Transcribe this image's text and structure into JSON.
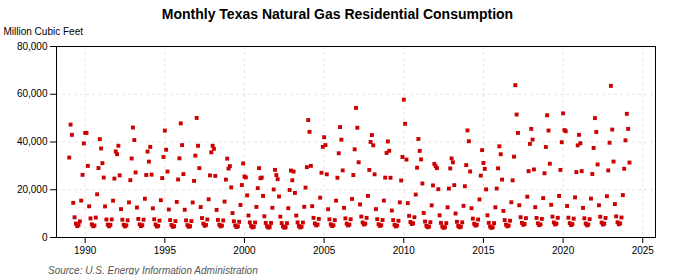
{
  "chart_data": {
    "type": "scatter",
    "title": "Monthly Texas Natural Gas Residential Consumption",
    "ylabel": "Million Cubic Feet",
    "source": "Source: U.S. Energy Information Administration",
    "color": "#cc0000",
    "marker": "square",
    "grid": true,
    "xlim": [
      1988.2,
      2025.8
    ],
    "xticks": [
      1990,
      1995,
      2000,
      2005,
      2010,
      2015,
      2020,
      2025
    ],
    "ylim": [
      0,
      80000
    ],
    "yticks": [
      0,
      {
        "value": 20000,
        "label": "20,000"
      },
      {
        "value": 40000,
        "label": "40,000"
      },
      {
        "value": 60000,
        "label": "60,000"
      },
      {
        "value": 80000,
        "label": "80,000"
      }
    ],
    "x": [
      1989,
      1989.0833333333333,
      1989.1666666666667,
      1989.25,
      1989.3333333333333,
      1989.4166666666667,
      1989.5,
      1989.5833333333333,
      1989.6666666666667,
      1989.75,
      1989.8333333333333,
      1989.9166666666667,
      1990,
      1990.0833333333333,
      1990.1666666666667,
      1990.25,
      1990.3333333333333,
      1990.4166666666667,
      1990.5,
      1990.5833333333333,
      1990.6666666666667,
      1990.75,
      1990.8333333333333,
      1990.9166666666667,
      1991,
      1991.0833333333333,
      1991.1666666666667,
      1991.25,
      1991.3333333333333,
      1991.4166666666667,
      1991.5,
      1991.5833333333333,
      1991.6666666666667,
      1991.75,
      1991.8333333333333,
      1991.9166666666667,
      1992,
      1992.0833333333333,
      1992.1666666666667,
      1992.25,
      1992.3333333333333,
      1992.4166666666667,
      1992.5,
      1992.5833333333333,
      1992.6666666666667,
      1992.75,
      1992.8333333333333,
      1992.9166666666667,
      1993,
      1993.0833333333333,
      1993.1666666666667,
      1993.25,
      1993.3333333333333,
      1993.4166666666667,
      1993.5,
      1993.5833333333333,
      1993.6666666666667,
      1993.75,
      1993.8333333333333,
      1993.9166666666667,
      1994,
      1994.0833333333333,
      1994.1666666666667,
      1994.25,
      1994.3333333333333,
      1994.4166666666667,
      1994.5,
      1994.5833333333333,
      1994.6666666666667,
      1994.75,
      1994.8333333333333,
      1994.9166666666667,
      1995,
      1995.0833333333333,
      1995.1666666666667,
      1995.25,
      1995.3333333333333,
      1995.4166666666667,
      1995.5,
      1995.5833333333333,
      1995.6666666666667,
      1995.75,
      1995.8333333333333,
      1995.9166666666667,
      1996,
      1996.0833333333333,
      1996.1666666666667,
      1996.25,
      1996.3333333333333,
      1996.4166666666667,
      1996.5,
      1996.5833333333333,
      1996.6666666666667,
      1996.75,
      1996.8333333333333,
      1996.9166666666667,
      1997,
      1997.0833333333333,
      1997.1666666666667,
      1997.25,
      1997.3333333333333,
      1997.4166666666667,
      1997.5,
      1997.5833333333333,
      1997.6666666666667,
      1997.75,
      1997.8333333333333,
      1997.9166666666667,
      1998,
      1998.0833333333333,
      1998.1666666666667,
      1998.25,
      1998.3333333333333,
      1998.4166666666667,
      1998.5,
      1998.5833333333333,
      1998.6666666666667,
      1998.75,
      1998.8333333333333,
      1998.9166666666667,
      1999,
      1999.0833333333333,
      1999.1666666666667,
      1999.25,
      1999.3333333333333,
      1999.4166666666667,
      1999.5,
      1999.5833333333333,
      1999.6666666666667,
      1999.75,
      1999.8333333333333,
      1999.9166666666667,
      2000,
      2000.0833333333333,
      2000.1666666666667,
      2000.25,
      2000.3333333333333,
      2000.4166666666667,
      2000.5,
      2000.5833333333333,
      2000.6666666666667,
      2000.75,
      2000.8333333333333,
      2000.9166666666667,
      2001,
      2001.0833333333333,
      2001.1666666666667,
      2001.25,
      2001.3333333333333,
      2001.4166666666667,
      2001.5,
      2001.5833333333333,
      2001.6666666666667,
      2001.75,
      2001.8333333333333,
      2001.9166666666667,
      2002,
      2002.0833333333333,
      2002.1666666666667,
      2002.25,
      2002.3333333333333,
      2002.4166666666667,
      2002.5,
      2002.5833333333333,
      2002.6666666666667,
      2002.75,
      2002.8333333333333,
      2002.9166666666667,
      2003,
      2003.0833333333333,
      2003.1666666666667,
      2003.25,
      2003.3333333333333,
      2003.4166666666667,
      2003.5,
      2003.5833333333333,
      2003.6666666666667,
      2003.75,
      2003.8333333333333,
      2003.9166666666667,
      2004,
      2004.0833333333333,
      2004.1666666666667,
      2004.25,
      2004.3333333333333,
      2004.4166666666667,
      2004.5,
      2004.5833333333333,
      2004.6666666666667,
      2004.75,
      2004.8333333333333,
      2004.9166666666667,
      2005,
      2005.0833333333333,
      2005.1666666666667,
      2005.25,
      2005.3333333333333,
      2005.4166666666667,
      2005.5,
      2005.5833333333333,
      2005.6666666666667,
      2005.75,
      2005.8333333333333,
      2005.9166666666667,
      2006,
      2006.0833333333333,
      2006.1666666666667,
      2006.25,
      2006.3333333333333,
      2006.4166666666667,
      2006.5,
      2006.5833333333333,
      2006.6666666666667,
      2006.75,
      2006.8333333333333,
      2006.9166666666667,
      2007,
      2007.0833333333333,
      2007.1666666666667,
      2007.25,
      2007.3333333333333,
      2007.4166666666667,
      2007.5,
      2007.5833333333333,
      2007.6666666666667,
      2007.75,
      2007.8333333333333,
      2007.9166666666667,
      2008,
      2008.0833333333333,
      2008.1666666666667,
      2008.25,
      2008.3333333333333,
      2008.4166666666667,
      2008.5,
      2008.5833333333333,
      2008.6666666666667,
      2008.75,
      2008.8333333333333,
      2008.9166666666667,
      2009,
      2009.0833333333333,
      2009.1666666666667,
      2009.25,
      2009.3333333333333,
      2009.4166666666667,
      2009.5,
      2009.5833333333333,
      2009.6666666666667,
      2009.75,
      2009.8333333333333,
      2009.9166666666667,
      2010,
      2010.0833333333333,
      2010.1666666666667,
      2010.25,
      2010.3333333333333,
      2010.4166666666667,
      2010.5,
      2010.5833333333333,
      2010.6666666666667,
      2010.75,
      2010.8333333333333,
      2010.9166666666667,
      2011,
      2011.0833333333333,
      2011.1666666666667,
      2011.25,
      2011.3333333333333,
      2011.4166666666667,
      2011.5,
      2011.5833333333333,
      2011.6666666666667,
      2011.75,
      2011.8333333333333,
      2011.9166666666667,
      2012,
      2012.0833333333333,
      2012.1666666666667,
      2012.25,
      2012.3333333333333,
      2012.4166666666667,
      2012.5,
      2012.5833333333333,
      2012.6666666666667,
      2012.75,
      2012.8333333333333,
      2012.9166666666667,
      2013,
      2013.0833333333333,
      2013.1666666666667,
      2013.25,
      2013.3333333333333,
      2013.4166666666667,
      2013.5,
      2013.5833333333333,
      2013.6666666666667,
      2013.75,
      2013.8333333333333,
      2013.9166666666667,
      2014,
      2014.0833333333333,
      2014.1666666666667,
      2014.25,
      2014.3333333333333,
      2014.4166666666667,
      2014.5,
      2014.5833333333333,
      2014.6666666666667,
      2014.75,
      2014.8333333333333,
      2014.9166666666667,
      2015,
      2015.0833333333333,
      2015.1666666666667,
      2015.25,
      2015.3333333333333,
      2015.4166666666667,
      2015.5,
      2015.5833333333333,
      2015.6666666666667,
      2015.75,
      2015.8333333333333,
      2015.9166666666667,
      2016,
      2016.0833333333333,
      2016.1666666666667,
      2016.25,
      2016.3333333333333,
      2016.4166666666667,
      2016.5,
      2016.5833333333333,
      2016.6666666666667,
      2016.75,
      2016.8333333333333,
      2016.9166666666667,
      2017,
      2017.0833333333333,
      2017.1666666666667,
      2017.25,
      2017.3333333333333,
      2017.4166666666667,
      2017.5,
      2017.5833333333333,
      2017.6666666666667,
      2017.75,
      2017.8333333333333,
      2017.9166666666667,
      2018,
      2018.0833333333333,
      2018.1666666666667,
      2018.25,
      2018.3333333333333,
      2018.4166666666667,
      2018.5,
      2018.5833333333333,
      2018.6666666666667,
      2018.75,
      2018.8333333333333,
      2018.9166666666667,
      2019,
      2019.0833333333333,
      2019.1666666666667,
      2019.25,
      2019.3333333333333,
      2019.4166666666667,
      2019.5,
      2019.5833333333333,
      2019.6666666666667,
      2019.75,
      2019.8333333333333,
      2019.9166666666667,
      2020,
      2020.0833333333333,
      2020.1666666666667,
      2020.25,
      2020.3333333333333,
      2020.4166666666667,
      2020.5,
      2020.5833333333333,
      2020.6666666666667,
      2020.75,
      2020.8333333333333,
      2020.9166666666667,
      2021,
      2021.0833333333333,
      2021.1666666666667,
      2021.25,
      2021.3333333333333,
      2021.4166666666667,
      2021.5,
      2021.5833333333333,
      2021.6666666666667,
      2021.75,
      2021.8333333333333,
      2021.9166666666667,
      2022,
      2022.0833333333333,
      2022.1666666666667,
      2022.25,
      2022.3333333333333,
      2022.4166666666667,
      2022.5,
      2022.5833333333333,
      2022.6666666666667,
      2022.75,
      2022.8333333333333,
      2022.9166666666667,
      2023,
      2023.0833333333333,
      2023.1666666666667,
      2023.25,
      2023.3333333333333,
      2023.4166666666667,
      2023.5,
      2023.5833333333333,
      2023.6666666666667,
      2023.75,
      2023.8333333333333,
      2023.9166666666667,
      2024,
      2024.0833333333333,
      2024.1666666666667
    ],
    "values": [
      33476,
      47291,
      42983,
      14505,
      8455,
      5827,
      4764,
      5218,
      6758,
      15459,
      26237,
      39407,
      43802,
      43827,
      29982,
      13069,
      8012,
      5505,
      4728,
      5042,
      8337,
      18098,
      29099,
      41210,
      37286,
      31148,
      25107,
      13022,
      7539,
      5401,
      4680,
      5279,
      7543,
      15432,
      24673,
      36041,
      34895,
      38428,
      26016,
      11889,
      7476,
      5330,
      4634,
      5109,
      7221,
      14698,
      24003,
      33088,
      46059,
      40817,
      27261,
      12539,
      7774,
      5519,
      4745,
      5176,
      7467,
      16236,
      26177,
      35999,
      31786,
      37946,
      26337,
      12218,
      7622,
      5458,
      4598,
      4876,
      7088,
      15613,
      24894,
      33726,
      44776,
      36753,
      27618,
      11726,
      7290,
      5239,
      4454,
      4754,
      6873,
      14907,
      24303,
      33164,
      47809,
      38700,
      26547,
      11617,
      7176,
      5184,
      4465,
      4756,
      6856,
      14672,
      23700,
      34290,
      50076,
      38432,
      29059,
      12756,
      8136,
      5813,
      4878,
      5246,
      7542,
      16012,
      26007,
      35682,
      38428,
      37165,
      25803,
      11563,
      7362,
      5371,
      4654,
      4990,
      7138,
      15040,
      24262,
      33041,
      28887,
      29900,
      20985,
      10234,
      6787,
      5040,
      4397,
      4694,
      6569,
      13632,
      21981,
      31025,
      25553,
      25164,
      17649,
      9213,
      6331,
      4810,
      4225,
      4510,
      6277,
      12801,
      20685,
      29060,
      24813,
      25102,
      17423,
      8879,
      6098,
      4687,
      4121,
      4396,
      6087,
      12447,
      20124,
      28326,
      26124,
      24428,
      17183,
      8741,
      6047,
      4617,
      4082,
      4316,
      6002,
      12270,
      19892,
      28041,
      23977,
      27617,
      18665,
      9185,
      6330,
      4818,
      4228,
      4509,
      6273,
      12856,
      20901,
      29454,
      49190,
      44256,
      30004,
      13118,
      8230,
      5880,
      5057,
      5413,
      7790,
      16673,
      27107,
      37952,
      42003,
      38714,
      26462,
      11832,
      7614,
      5541,
      4806,
      5142,
      7306,
      15434,
      25032,
      35290,
      46258,
      40977,
      28107,
      12415,
      8010,
      5815,
      5044,
      5399,
      7639,
      16146,
      26172,
      36929,
      54290,
      45978,
      31502,
      13852,
      8764,
      6295,
      5438,
      5817,
      8224,
      17422,
      28316,
      40007,
      42908,
      38611,
      26462,
      11895,
      7675,
      5581,
      4847,
      5182,
      7327,
      15460,
      25080,
      35407,
      40225,
      36312,
      25021,
      11294,
      7311,
      5336,
      4642,
      4968,
      7003,
      14711,
      23879,
      33715,
      57741,
      47628,
      32632,
      14385,
      9058,
      6492,
      5623,
      6012,
      8493,
      17980,
      29237,
      41277,
      36282,
      32714,
      22625,
      10285,
      6707,
      4919,
      4293,
      4586,
      6417,
      13453,
      21824,
      30826,
      29818,
      29060,
      20234,
      9299,
      6126,
      4571,
      4020,
      4299,
      6020,
      12633,
      20494,
      28932,
      33128,
      31500,
      21919,
      10048,
      6569,
      4842,
      4237,
      4530,
      6338,
      13247,
      21476,
      30323,
      44854,
      40318,
      27636,
      12267,
      7920,
      5750,
      4986,
      5330,
      7542,
      15940,
      25913,
      36595,
      31207,
      28748,
      20159,
      9299,
      6130,
      4578,
      4022,
      4302,
      6028,
      12641,
      20507,
      28978,
      38193,
      34878,
      24261,
      11139,
      7285,
      5362,
      4675,
      5003,
      7038,
      14759,
      23939,
      33862,
      63800,
      51500,
      43800,
      13500,
      8500,
      6100,
      5300,
      5700,
      8100,
      17100,
      27800,
      39200,
      45500,
      41000,
      28500,
      12700,
      8200,
      5950,
      5150,
      5510,
      7800,
      16500,
      26900,
      37900,
      51200,
      44800,
      30900,
      13700,
      8750,
      6300,
      5460,
      5830,
      8240,
      17400,
      28300,
      39900,
      52000,
      45000,
      44500,
      13200,
      8300,
      6000,
      5200,
      5600,
      7900,
      16800,
      27400,
      38600,
      43000,
      39500,
      27800,
      12400,
      8050,
      5850,
      5080,
      5440,
      7700,
      16300,
      26600,
      37500,
      50000,
      44200,
      30600,
      13500,
      8700,
      6250,
      5420,
      5800,
      8200,
      17300,
      28100,
      39700,
      63500,
      45200,
      31800,
      14000,
      8850,
      6380,
      5530,
      5920,
      8380,
      17750,
      28800,
      40700,
      51800,
      45500,
      31400
    ]
  }
}
